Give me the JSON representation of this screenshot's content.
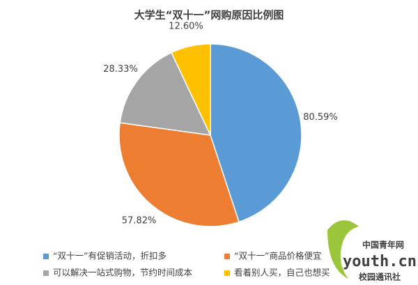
{
  "chart_data": {
    "type": "pie",
    "title": "大学生“双十一”网购原因比例图",
    "categories": [
      "“双十一”有促销活动，折扣多",
      "“双十一”商品价格便宜",
      "可以解决一站式购物，节约时间成本",
      "看着别人买，自己也想买"
    ],
    "values": [
      80.59,
      57.82,
      28.33,
      12.6
    ],
    "value_labels": [
      "80.59%",
      "57.82%",
      "28.33%",
      "12.60%"
    ],
    "colors": [
      "#5b9bd5",
      "#ed7d31",
      "#a5a5a5",
      "#ffc000"
    ],
    "legend": "bottom"
  },
  "watermark": {
    "site": "中国青年网",
    "domain": "youth.cn",
    "unit": "校园通讯社"
  }
}
